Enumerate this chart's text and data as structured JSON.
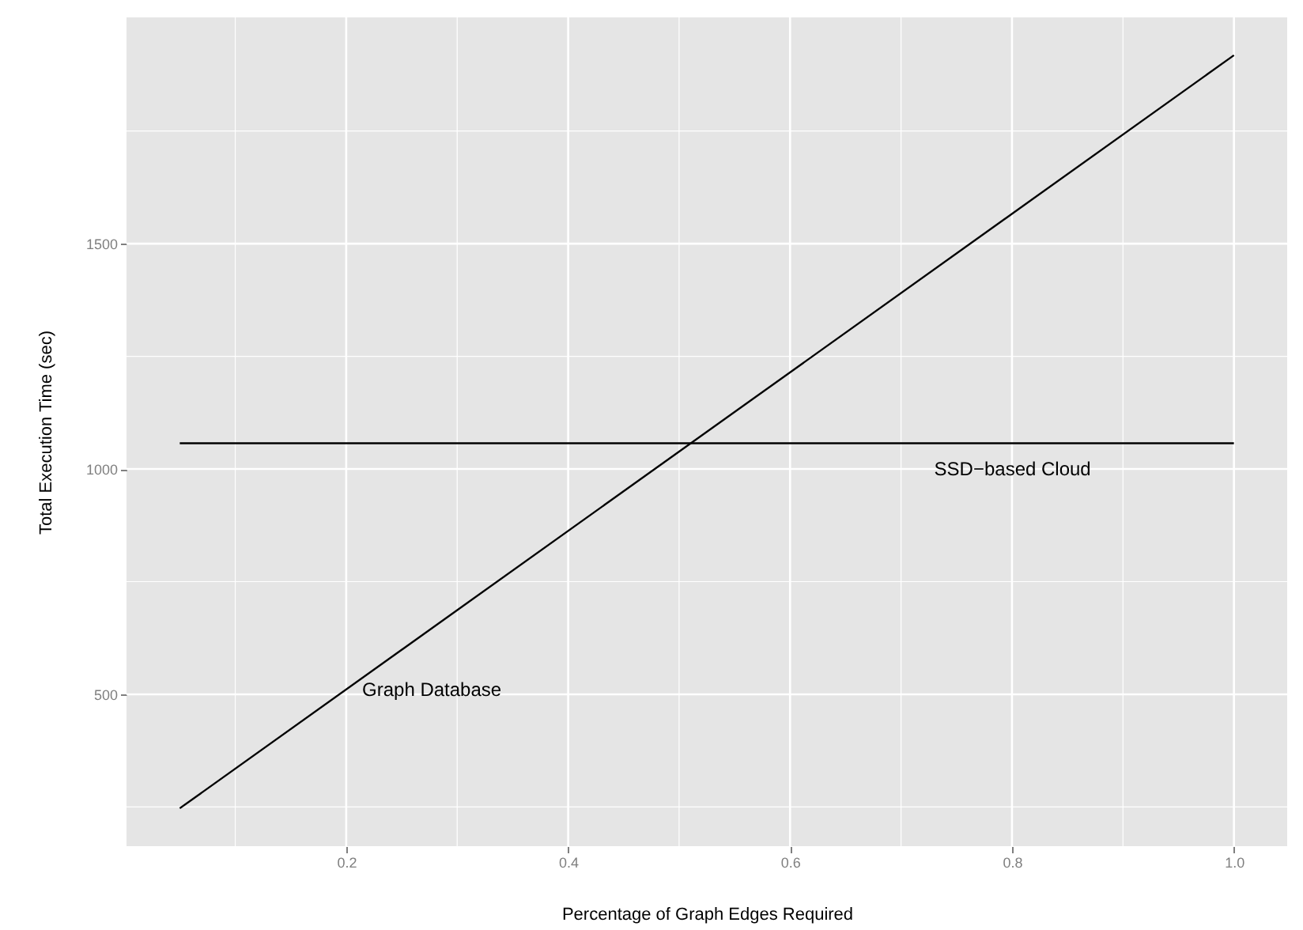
{
  "chart_data": {
    "type": "line",
    "xlabel": "Percentage of Graph Edges Required",
    "ylabel": "Total Execution Time (sec)",
    "series": [
      {
        "name": "Graph Database",
        "color": "#000000",
        "values": [
          247,
          1918
        ]
      },
      {
        "name": "SSD−based Cloud",
        "color": "#000000",
        "values": [
          1057,
          1057
        ]
      }
    ],
    "x": [
      0.05,
      1.0
    ],
    "xlim": [
      0.002,
      1.048
    ],
    "ylim": [
      163,
      2002
    ],
    "xticks": [
      {
        "value": 0.1,
        "label": null
      },
      0.2,
      {
        "value": 0.3,
        "label": null
      },
      0.4,
      {
        "value": 0.5,
        "label": null
      },
      0.6,
      {
        "value": 0.7,
        "label": null
      },
      0.8,
      {
        "value": 0.9,
        "label": null
      },
      {
        "value": 1.0,
        "label": "1.0"
      }
    ],
    "yticks": [
      {
        "value": 250,
        "label": null
      },
      500,
      {
        "value": 750,
        "label": null
      },
      1000,
      {
        "value": 1250,
        "label": null
      },
      1500,
      {
        "value": 1750,
        "label": null
      }
    ],
    "grid": true,
    "marker": "none",
    "line_style": "solid"
  }
}
